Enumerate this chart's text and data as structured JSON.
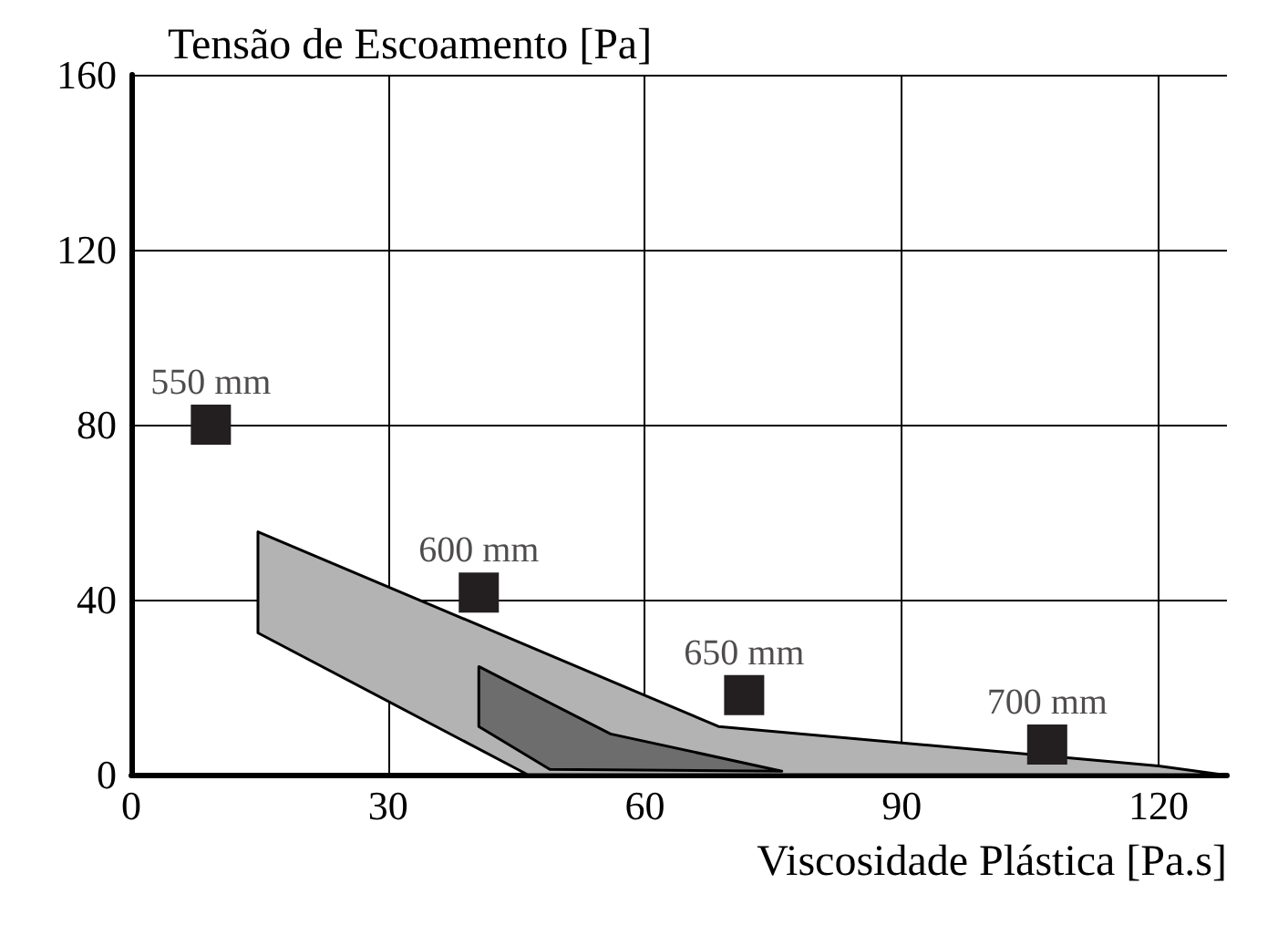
{
  "chart_data": {
    "type": "scatter",
    "ylabel": "Tensão de Escoamento [Pa]",
    "xlabel": "Viscosidade Plástica [Pa.s]",
    "xlim": [
      0,
      128
    ],
    "ylim": [
      0,
      160
    ],
    "xticks": [
      0,
      30,
      60,
      90,
      120
    ],
    "yticks": [
      0,
      40,
      80,
      120,
      160
    ],
    "grid": true,
    "series": [
      {
        "type": "area",
        "color": "#b3b3b3",
        "x": [
          14.8,
          68.6,
          120,
          127.4,
          46.3,
          14.8
        ],
        "values": [
          55.5,
          11,
          2,
          0,
          0,
          32.4
        ]
      },
      {
        "type": "area",
        "color": "#6d6d6d",
        "x": [
          40.6,
          56,
          76,
          48.9,
          40.6
        ],
        "values": [
          24.7,
          9.3,
          0.8,
          1.2,
          11
        ]
      },
      {
        "color": "#231f20",
        "marker": "square",
        "x": [
          9.3,
          40.6,
          71.6,
          107
        ],
        "values": [
          80,
          41.6,
          18.2,
          6.9
        ]
      }
    ],
    "annotations": [
      {
        "text": "550 mm",
        "x": 9.3,
        "y": 80
      },
      {
        "text": "600 mm",
        "x": 40.6,
        "y": 41.6
      },
      {
        "text": "650 mm",
        "x": 71.6,
        "y": 18.2
      },
      {
        "text": "700 mm",
        "x": 107,
        "y": 6.9
      }
    ]
  }
}
